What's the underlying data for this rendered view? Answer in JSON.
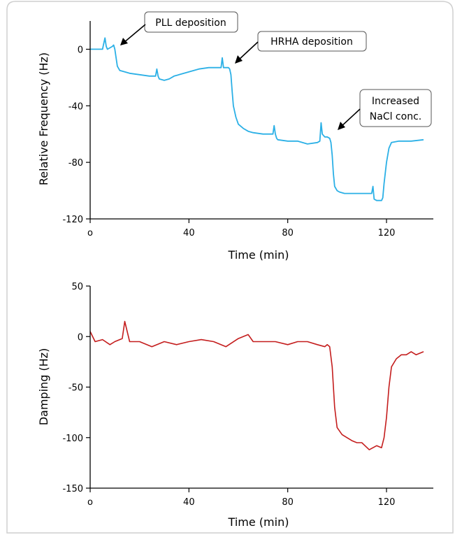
{
  "chart_data": [
    {
      "type": "line",
      "title": "",
      "xlabel": "Time (min)",
      "ylabel": "Relative Frequency (Hz)",
      "xlim": [
        0,
        140
      ],
      "ylim": [
        -120,
        20
      ],
      "xticks": [
        0,
        40,
        80,
        120
      ],
      "xtick_labels": [
        "o",
        "40",
        "80",
        "120"
      ],
      "yticks": [
        0,
        -40,
        -80,
        -120
      ],
      "ytick_labels": [
        "0",
        "-40",
        "-80",
        "-120"
      ],
      "grid": false,
      "color": "#2bb0e6",
      "series": [
        {
          "x": [
            0,
            5,
            5.5,
            6,
            6.5,
            7,
            8,
            9,
            9.5,
            10,
            10.5,
            11,
            12,
            14,
            16,
            20,
            24,
            26.5,
            27,
            27.5,
            28,
            30,
            32,
            34,
            36,
            40,
            44,
            48,
            52,
            53,
            53.5,
            54,
            55,
            56,
            56.5,
            57,
            57.5,
            58,
            59,
            60,
            62,
            64,
            66,
            70,
            73,
            74,
            74.5,
            75,
            75.5,
            76,
            80,
            84,
            88,
            92,
            93,
            93.5,
            94,
            95,
            96,
            97,
            97.5,
            98,
            98.5,
            99,
            100,
            101,
            103,
            106,
            110,
            114,
            114.5,
            115,
            116,
            118,
            118.5,
            119,
            120,
            121,
            122,
            125,
            130,
            135
          ],
          "y": [
            0,
            0,
            4,
            8,
            2,
            0,
            1,
            2,
            3,
            0,
            -6,
            -12,
            -15,
            -16,
            -17,
            -18,
            -19,
            -19,
            -14,
            -19,
            -21,
            -22,
            -21,
            -19,
            -18,
            -16,
            -14,
            -13,
            -13,
            -13,
            -6,
            -13,
            -13,
            -13,
            -14,
            -18,
            -30,
            -40,
            -48,
            -53,
            -56,
            -58,
            -59,
            -60,
            -60,
            -60,
            -54,
            -60,
            -63,
            -64,
            -65,
            -65,
            -67,
            -66,
            -65,
            -52,
            -60,
            -62,
            -62,
            -63,
            -66,
            -75,
            -88,
            -97,
            -100,
            -101,
            -102,
            -102,
            -102,
            -102,
            -97,
            -106,
            -107,
            -107,
            -105,
            -95,
            -80,
            -70,
            -66,
            -65,
            -65,
            -64
          ]
        }
      ]
    },
    {
      "type": "line",
      "title": "",
      "xlabel": "Time (min)",
      "ylabel": "Damping (Hz)",
      "xlim": [
        0,
        140
      ],
      "ylim": [
        -150,
        50
      ],
      "xticks": [
        0,
        40,
        80,
        120
      ],
      "xtick_labels": [
        "o",
        "40",
        "80",
        "120"
      ],
      "yticks": [
        50,
        0,
        -50,
        -100,
        -150
      ],
      "ytick_labels": [
        "50",
        "0",
        "-50",
        "-100",
        "-150"
      ],
      "grid": false,
      "color": "#c41d1d",
      "series": [
        {
          "x": [
            0,
            2,
            5,
            8,
            10,
            13,
            14,
            16,
            20,
            25,
            30,
            35,
            40,
            45,
            50,
            55,
            60,
            64,
            66,
            70,
            75,
            80,
            84,
            88,
            92,
            95,
            96,
            97,
            98,
            99,
            100,
            102,
            104,
            106,
            108,
            110,
            113,
            116,
            118,
            119,
            120,
            121,
            122,
            124,
            126,
            128,
            130,
            132,
            135
          ],
          "y": [
            5,
            -5,
            -3,
            -8,
            -5,
            -2,
            15,
            -5,
            -5,
            -10,
            -5,
            -8,
            -5,
            -3,
            -5,
            -10,
            -2,
            2,
            -5,
            -5,
            -5,
            -8,
            -5,
            -5,
            -8,
            -10,
            -8,
            -10,
            -30,
            -70,
            -90,
            -97,
            -100,
            -103,
            -105,
            -105,
            -112,
            -108,
            -110,
            -100,
            -80,
            -50,
            -30,
            -22,
            -18,
            -18,
            -15,
            -18,
            -15
          ]
        }
      ]
    }
  ],
  "annotations": [
    {
      "text": "PLL deposition"
    },
    {
      "text": "HRHA deposition"
    },
    {
      "line1": "Increased",
      "line2": "NaCl conc."
    }
  ]
}
